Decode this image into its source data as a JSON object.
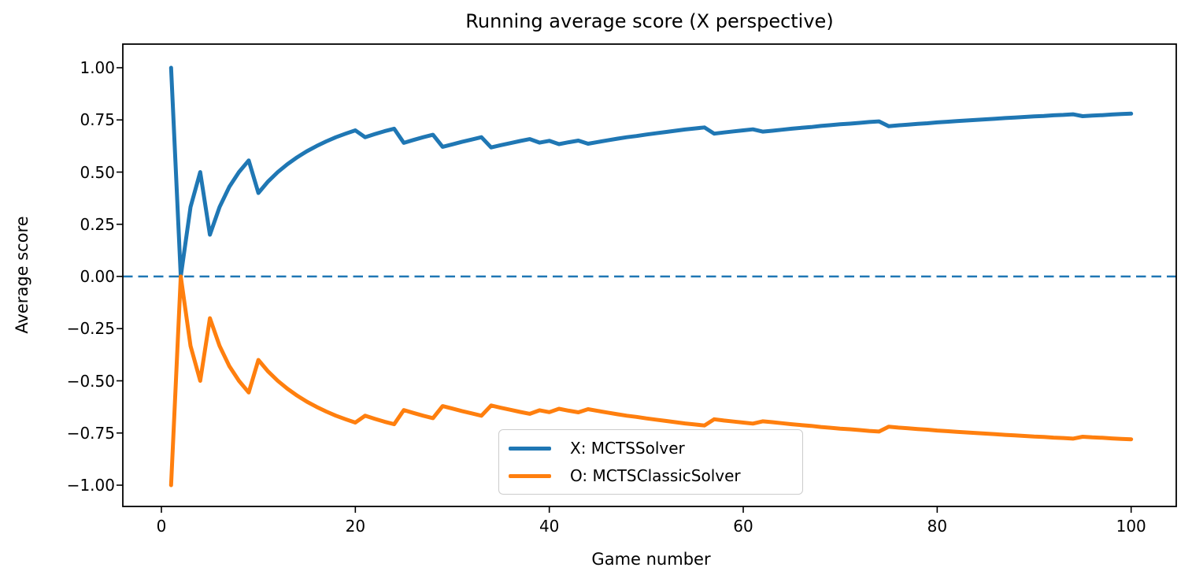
{
  "title": "Running average score (X perspective)",
  "axes": {
    "xlabel": "Game number",
    "ylabel": "Average score"
  },
  "legend": {
    "items": [
      {
        "label": "X: MCTSSolver",
        "color": "#1f77b4"
      },
      {
        "label": "O: MCTSClassicSolver",
        "color": "#ff7f0e"
      }
    ],
    "position": "lower center"
  },
  "colors": {
    "blue": "#1f77b4",
    "orange": "#ff7f0e",
    "axis": "#000000",
    "legend_border": "#cccccc",
    "background": "#ffffff"
  },
  "chart_data": {
    "type": "line",
    "title": "Running average score (X perspective)",
    "xlabel": "Game number",
    "ylabel": "Average score",
    "xlim": [
      -3.95,
      104.95
    ],
    "ylim": [
      -1.105,
      1.105
    ],
    "grid": false,
    "legend_position": "lower center",
    "xticks": [
      0,
      20,
      40,
      60,
      80,
      100
    ],
    "xtick_labels": [
      "0",
      "20",
      "40",
      "60",
      "80",
      "100"
    ],
    "yticks": [
      1.0,
      0.75,
      0.5,
      0.25,
      0.0,
      -0.25,
      -0.5,
      -0.75,
      -1.0
    ],
    "ytick_labels": [
      "1.00",
      "0.75",
      "0.50",
      "0.25",
      "0.00",
      "−0.25",
      "−0.50",
      "−0.75",
      "−1.00"
    ],
    "zero_line": {
      "y": 0.0,
      "style": "dashed",
      "color": "#1f77b4"
    },
    "x": [
      1,
      2,
      3,
      4,
      5,
      6,
      7,
      8,
      9,
      10,
      11,
      12,
      13,
      14,
      15,
      16,
      17,
      18,
      19,
      20,
      21,
      22,
      23,
      24,
      25,
      26,
      27,
      28,
      29,
      30,
      31,
      32,
      33,
      34,
      35,
      36,
      37,
      38,
      39,
      40,
      41,
      42,
      43,
      44,
      45,
      46,
      47,
      48,
      49,
      50,
      51,
      52,
      53,
      54,
      55,
      56,
      57,
      58,
      59,
      60,
      61,
      62,
      63,
      64,
      65,
      66,
      67,
      68,
      69,
      70,
      71,
      72,
      73,
      74,
      75,
      76,
      77,
      78,
      79,
      80,
      81,
      82,
      83,
      84,
      85,
      86,
      87,
      88,
      89,
      90,
      91,
      92,
      93,
      94,
      95,
      96,
      97,
      98,
      99,
      100
    ],
    "series": [
      {
        "name": "X: MCTSSolver",
        "color": "#1f77b4",
        "values": [
          1.0,
          0.0,
          0.333,
          0.5,
          0.2,
          0.333,
          0.429,
          0.5,
          0.556,
          0.4,
          0.455,
          0.5,
          0.538,
          0.571,
          0.6,
          0.625,
          0.647,
          0.667,
          0.684,
          0.7,
          0.667,
          0.682,
          0.696,
          0.708,
          0.64,
          0.654,
          0.667,
          0.679,
          0.621,
          0.633,
          0.645,
          0.656,
          0.667,
          0.618,
          0.629,
          0.639,
          0.649,
          0.658,
          0.641,
          0.65,
          0.634,
          0.643,
          0.651,
          0.636,
          0.644,
          0.652,
          0.66,
          0.667,
          0.673,
          0.68,
          0.686,
          0.692,
          0.698,
          0.704,
          0.709,
          0.714,
          0.684,
          0.69,
          0.695,
          0.7,
          0.705,
          0.694,
          0.698,
          0.703,
          0.708,
          0.712,
          0.716,
          0.721,
          0.725,
          0.729,
          0.732,
          0.736,
          0.74,
          0.743,
          0.72,
          0.724,
          0.727,
          0.731,
          0.734,
          0.738,
          0.741,
          0.744,
          0.747,
          0.75,
          0.753,
          0.756,
          0.759,
          0.761,
          0.764,
          0.767,
          0.769,
          0.772,
          0.774,
          0.777,
          0.768,
          0.771,
          0.773,
          0.776,
          0.778,
          0.78
        ]
      },
      {
        "name": "O: MCTSClassicSolver",
        "color": "#ff7f0e",
        "values": [
          -1.0,
          0.0,
          -0.333,
          -0.5,
          -0.2,
          -0.333,
          -0.429,
          -0.5,
          -0.556,
          -0.4,
          -0.455,
          -0.5,
          -0.538,
          -0.571,
          -0.6,
          -0.625,
          -0.647,
          -0.667,
          -0.684,
          -0.7,
          -0.667,
          -0.682,
          -0.696,
          -0.708,
          -0.64,
          -0.654,
          -0.667,
          -0.679,
          -0.621,
          -0.633,
          -0.645,
          -0.656,
          -0.667,
          -0.618,
          -0.629,
          -0.639,
          -0.649,
          -0.658,
          -0.641,
          -0.65,
          -0.634,
          -0.643,
          -0.651,
          -0.636,
          -0.644,
          -0.652,
          -0.66,
          -0.667,
          -0.673,
          -0.68,
          -0.686,
          -0.692,
          -0.698,
          -0.704,
          -0.709,
          -0.714,
          -0.684,
          -0.69,
          -0.695,
          -0.7,
          -0.705,
          -0.694,
          -0.698,
          -0.703,
          -0.708,
          -0.712,
          -0.716,
          -0.721,
          -0.725,
          -0.729,
          -0.732,
          -0.736,
          -0.74,
          -0.743,
          -0.72,
          -0.724,
          -0.727,
          -0.731,
          -0.734,
          -0.738,
          -0.741,
          -0.744,
          -0.747,
          -0.75,
          -0.753,
          -0.756,
          -0.759,
          -0.761,
          -0.764,
          -0.767,
          -0.769,
          -0.772,
          -0.774,
          -0.777,
          -0.768,
          -0.771,
          -0.773,
          -0.776,
          -0.778,
          -0.78
        ]
      }
    ]
  }
}
